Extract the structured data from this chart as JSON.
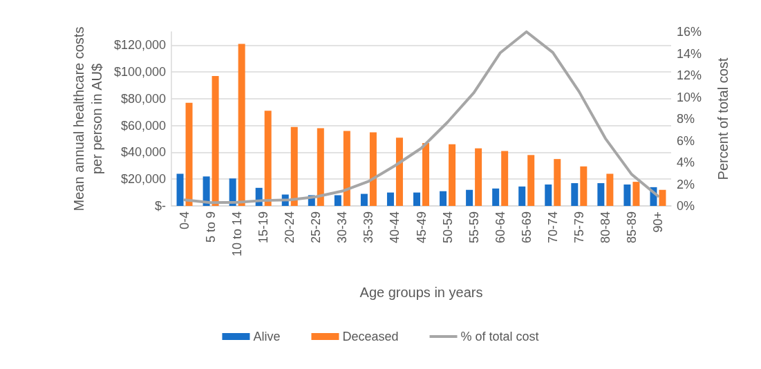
{
  "chart_data": {
    "type": "bar",
    "xlabel": "Age groups in years",
    "ylabel": "Mean annual healthcare costs\nper person in AU$",
    "y2label": "Percent of total cost",
    "categories": [
      "0-4",
      "5 to 9",
      "10 to 14",
      "15-19",
      "20-24",
      "25-29",
      "30-34",
      "35-39",
      "40-44",
      "45-49",
      "50-54",
      "55-59",
      "60-64",
      "65-69",
      "70-74",
      "75-79",
      "80-84",
      "85-89",
      "90+"
    ],
    "series": [
      {
        "name": "Alive",
        "color": "#1870c9",
        "values": [
          24000,
          22000,
          20500,
          13500,
          8500,
          8000,
          8000,
          9000,
          10000,
          10000,
          11000,
          12000,
          13000,
          14500,
          16000,
          17000,
          17000,
          16000,
          14000
        ]
      },
      {
        "name": "Deceased",
        "color": "#ff7f27",
        "values": [
          77000,
          97000,
          121000,
          71000,
          59000,
          58000,
          56000,
          55000,
          51000,
          47000,
          46000,
          43000,
          41000,
          38000,
          35000,
          29500,
          24000,
          18000,
          12000
        ]
      },
      {
        "name": "% of total cost",
        "type": "line",
        "axis": "y2",
        "color": "#a6a6a6",
        "values": [
          0.56,
          0.3,
          0.34,
          0.5,
          0.56,
          0.84,
          1.36,
          2.26,
          3.7,
          5.3,
          7.7,
          10.4,
          14.06,
          16,
          14.1,
          10.5,
          6.2,
          2.9,
          0.9
        ]
      }
    ],
    "ylim": [
      0,
      130000
    ],
    "yticks": [
      {
        "value": 0,
        "label": "$-"
      },
      {
        "value": 20000,
        "label": "$20,000"
      },
      {
        "value": 40000,
        "label": "$40,000"
      },
      {
        "value": 60000,
        "label": "$60,000"
      },
      {
        "value": 80000,
        "label": "$80,000"
      },
      {
        "value": 100000,
        "label": "$100,000"
      },
      {
        "value": 120000,
        "label": "$120,000"
      }
    ],
    "y2lim": [
      0,
      16
    ],
    "y2ticks": [
      {
        "value": 0,
        "label": "0%"
      },
      {
        "value": 2,
        "label": "2%"
      },
      {
        "value": 4,
        "label": "4%"
      },
      {
        "value": 6,
        "label": "6%"
      },
      {
        "value": 8,
        "label": "8%"
      },
      {
        "value": 10,
        "label": "10%"
      },
      {
        "value": 12,
        "label": "12%"
      },
      {
        "value": 14,
        "label": "14%"
      },
      {
        "value": 16,
        "label": "16%"
      }
    ],
    "grid": "y",
    "legend": "bottom",
    "marker": "none",
    "line_style": "solid"
  }
}
